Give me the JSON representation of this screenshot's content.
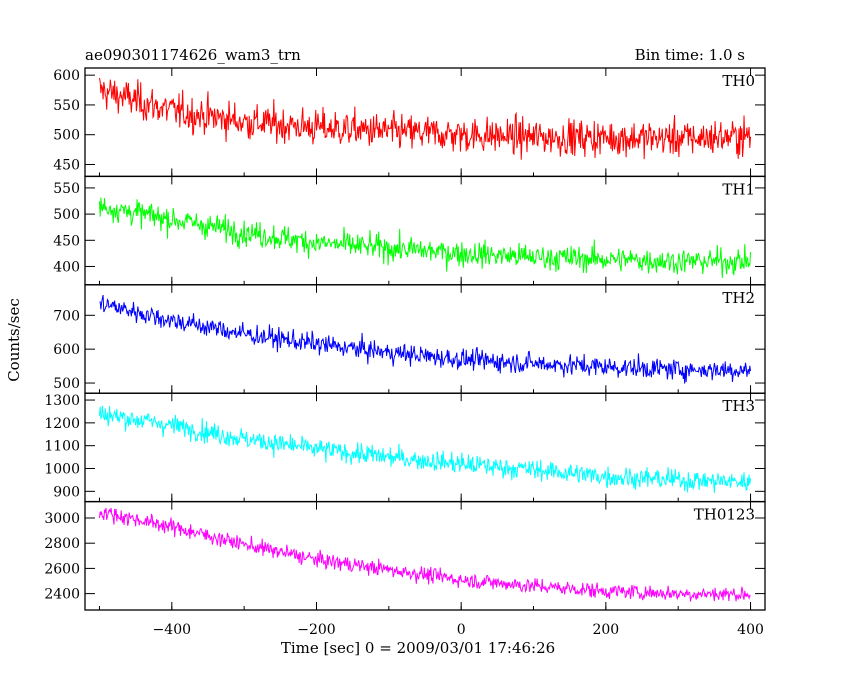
{
  "header": {
    "title": "ae090301174626_wam3_trn",
    "bin_time": "Bin time: 1.0 s"
  },
  "axes": {
    "xlabel": "Time [sec] 0 = 2009/03/01 17:46:26",
    "ylabel": "Counts/sec"
  },
  "chart_data": {
    "type": "line",
    "xlim": [
      -520,
      420
    ],
    "x_ticks": [
      -400,
      -200,
      0,
      200,
      400
    ],
    "x_tick_labels": [
      "−400",
      "−200",
      "0",
      "200",
      "400"
    ],
    "x_range": [
      -500,
      400
    ],
    "bin_time_s": 1.0,
    "series": [
      {
        "name": "TH0",
        "color": "#ff0000",
        "ylim": [
          430,
          612
        ],
        "yticks": [
          450,
          500,
          550,
          600
        ],
        "trend": [
          [
            -500,
            575
          ],
          [
            -400,
            540
          ],
          [
            -300,
            522
          ],
          [
            -200,
            512
          ],
          [
            -100,
            505
          ],
          [
            0,
            500
          ],
          [
            100,
            496
          ],
          [
            200,
            495
          ],
          [
            300,
            494
          ],
          [
            400,
            497
          ]
        ],
        "noise": 30
      },
      {
        "name": "TH1",
        "color": "#00ff00",
        "ylim": [
          365,
          572
        ],
        "yticks": [
          400,
          450,
          500,
          550
        ],
        "trend": [
          [
            -500,
            515
          ],
          [
            -400,
            490
          ],
          [
            -300,
            465
          ],
          [
            -200,
            445
          ],
          [
            -100,
            435
          ],
          [
            0,
            425
          ],
          [
            100,
            418
          ],
          [
            200,
            414
          ],
          [
            300,
            410
          ],
          [
            400,
            410
          ]
        ],
        "noise": 24
      },
      {
        "name": "TH2",
        "color": "#0000ff",
        "ylim": [
          470,
          790
        ],
        "yticks": [
          500,
          600,
          700
        ],
        "trend": [
          [
            -500,
            735
          ],
          [
            -400,
            685
          ],
          [
            -300,
            645
          ],
          [
            -200,
            615
          ],
          [
            -100,
            590
          ],
          [
            0,
            570
          ],
          [
            100,
            558
          ],
          [
            200,
            548
          ],
          [
            300,
            540
          ],
          [
            400,
            538
          ]
        ],
        "noise": 30
      },
      {
        "name": "TH3",
        "color": "#00ffff",
        "ylim": [
          855,
          1330
        ],
        "yticks": [
          900,
          1000,
          1100,
          1200,
          1300
        ],
        "trend": [
          [
            -500,
            1240
          ],
          [
            -400,
            1190
          ],
          [
            -300,
            1130
          ],
          [
            -200,
            1085
          ],
          [
            -100,
            1050
          ],
          [
            0,
            1020
          ],
          [
            100,
            995
          ],
          [
            200,
            965
          ],
          [
            300,
            950
          ],
          [
            400,
            940
          ]
        ],
        "noise": 45
      },
      {
        "name": "TH0123",
        "color": "#ff00ff",
        "ylim": [
          2270,
          3130
        ],
        "yticks": [
          2400,
          2600,
          2800,
          3000
        ],
        "trend": [
          [
            -500,
            3050
          ],
          [
            -400,
            2930
          ],
          [
            -300,
            2790
          ],
          [
            -200,
            2670
          ],
          [
            -100,
            2590
          ],
          [
            0,
            2510
          ],
          [
            100,
            2460
          ],
          [
            200,
            2420
          ],
          [
            300,
            2400
          ],
          [
            400,
            2395
          ]
        ],
        "noise": 60
      }
    ]
  }
}
